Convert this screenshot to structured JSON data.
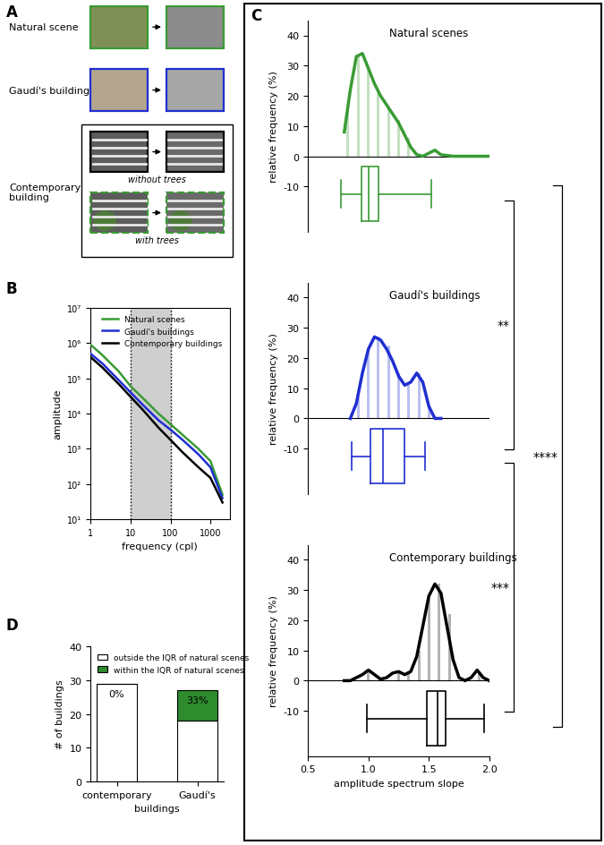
{
  "figure_a": {
    "panel": "A",
    "rows": [
      {
        "label": "Natural scene",
        "border_color": "#3a9b35"
      },
      {
        "label": "Gaudí's building",
        "border_color": "#1f2fd0"
      },
      {
        "label": "Contemporary building",
        "variants": [
          {
            "label": "without trees",
            "border_color": "#000000"
          },
          {
            "label": "with trees",
            "border_color": "#3a9b35"
          }
        ]
      }
    ]
  },
  "chart_data": [
    {
      "panel": "B",
      "type": "line",
      "log": true,
      "xlabel": "frequency (cpl)",
      "ylabel": "amplitude",
      "x": [
        1,
        2,
        5,
        10,
        20,
        50,
        100,
        200,
        500,
        1000,
        2000
      ],
      "series": [
        {
          "name": "Natural scenes",
          "color": "#3a9b35",
          "values": [
            900000,
            450000,
            160000,
            60000,
            28000,
            10000,
            5000,
            2500,
            1000,
            450,
            50
          ]
        },
        {
          "name": "Gaudí's buildings",
          "color": "#1f2fd0",
          "values": [
            500000,
            260000,
            90000,
            40000,
            18000,
            6500,
            3500,
            1800,
            700,
            300,
            40
          ]
        },
        {
          "name": "Contemporary buildings",
          "color": "#000000",
          "values": [
            400000,
            200000,
            70000,
            30000,
            13000,
            4000,
            1800,
            800,
            300,
            150,
            30
          ]
        }
      ],
      "shaded_range": [
        10,
        100
      ],
      "xlim": [
        1,
        3000
      ],
      "xticks": [
        1,
        10,
        100,
        1000
      ],
      "ylim": [
        10,
        10000000
      ],
      "yticks": [
        {
          "value": 10,
          "label": "10¹"
        },
        {
          "value": 100,
          "label": "10²"
        },
        {
          "value": 1000,
          "label": "10³"
        },
        {
          "value": 10000,
          "label": "10⁴"
        },
        {
          "value": 100000,
          "label": "10⁵"
        },
        {
          "value": 1000000,
          "label": "10⁶"
        },
        {
          "value": 10000000,
          "label": "10⁷"
        }
      ],
      "legend": "upper right"
    },
    {
      "panel": "C",
      "type": "density",
      "title": "Natural scenes",
      "color": "#3a9b35",
      "ylabel": "relative frequency (%)",
      "curve": {
        "x": [
          0.8,
          0.85,
          0.9,
          0.95,
          1.0,
          1.05,
          1.1,
          1.15,
          1.2,
          1.25,
          1.3,
          1.35,
          1.4,
          1.45,
          1.5,
          1.55,
          1.6,
          1.7,
          1.8,
          1.9,
          2.0
        ],
        "values": [
          8,
          22,
          33,
          34,
          29,
          24,
          20,
          17,
          14,
          11,
          7,
          3,
          0.5,
          0,
          1,
          2,
          0.5,
          0,
          0,
          0,
          0
        ]
      },
      "bars": {
        "x": [
          0.83,
          0.92,
          1.0,
          1.08,
          1.17,
          1.25,
          1.33
        ],
        "values": [
          15,
          33,
          29,
          21,
          16,
          12,
          6
        ]
      },
      "box": {
        "whislo": 0.77,
        "q1": 0.94,
        "med": 1.0,
        "q3": 1.08,
        "whishi": 1.52
      },
      "xlim": [
        0.5,
        2.0
      ],
      "ylim": [
        -25,
        45
      ],
      "yticks": [
        -10,
        0,
        10,
        20,
        30,
        40
      ]
    },
    {
      "type": "density",
      "title": "Gaudí's buildings",
      "color": "#1f2fd0",
      "ylabel": "relative frequency (%)",
      "curve": {
        "x": [
          0.85,
          0.9,
          0.95,
          1.0,
          1.05,
          1.1,
          1.15,
          1.2,
          1.25,
          1.3,
          1.35,
          1.4,
          1.45,
          1.5,
          1.55,
          1.6
        ],
        "values": [
          0,
          5,
          15,
          23,
          27,
          26,
          23,
          19,
          14,
          11,
          12,
          15,
          12,
          4,
          0,
          0
        ]
      },
      "bars": {
        "x": [
          0.92,
          1.0,
          1.08,
          1.17,
          1.25,
          1.33,
          1.42,
          1.5
        ],
        "values": [
          7,
          22,
          27,
          24,
          15,
          11,
          15,
          4
        ]
      },
      "box": {
        "whislo": 0.86,
        "q1": 1.02,
        "med": 1.12,
        "q3": 1.3,
        "whishi": 1.47
      },
      "xlim": [
        0.5,
        2.0
      ],
      "ylim": [
        -25,
        45
      ],
      "yticks": [
        -10,
        0,
        10,
        20,
        30,
        40
      ]
    },
    {
      "type": "density",
      "title": "Contemporary buildings",
      "color": "#000000",
      "ylabel": "relative frequency (%)",
      "xlabel": "amplitude spectrum slope",
      "curve": {
        "x": [
          0.8,
          0.85,
          0.9,
          0.95,
          1.0,
          1.05,
          1.1,
          1.15,
          1.2,
          1.25,
          1.3,
          1.35,
          1.4,
          1.45,
          1.5,
          1.55,
          1.6,
          1.65,
          1.7,
          1.75,
          1.8,
          1.85,
          1.9,
          1.95,
          2.0
        ],
        "values": [
          0,
          0,
          1,
          2,
          3.5,
          2,
          0.5,
          1,
          2.5,
          3,
          2,
          3,
          8,
          18,
          28,
          32,
          29,
          18,
          7,
          1,
          0,
          1,
          3.5,
          1,
          0
        ]
      },
      "bars": {
        "x": [
          1.0,
          1.25,
          1.33,
          1.42,
          1.5,
          1.58,
          1.67,
          1.92
        ],
        "values": [
          3,
          3,
          3,
          10,
          27,
          32,
          22,
          3
        ]
      },
      "box": {
        "whislo": 0.99,
        "q1": 1.48,
        "med": 1.57,
        "q3": 1.64,
        "whishi": 1.96
      },
      "xlim": [
        0.5,
        2.0
      ],
      "xticks": [
        0.5,
        {
          "value": 1.0,
          "label": "1.0"
        },
        1.5,
        {
          "value": 2.0,
          "label": "2.0"
        }
      ],
      "ylim": [
        -25,
        45
      ],
      "yticks": [
        -10,
        0,
        10,
        20,
        30,
        40
      ]
    },
    {
      "panel": "D",
      "type": "bar",
      "stacked": true,
      "categories": [
        "contemporary",
        "Gaudí's"
      ],
      "xlabel": "buildings",
      "ylabel": "# of buildings",
      "series": [
        {
          "name": "outside the IQR of natural scenes",
          "color": "#ffffff",
          "values": [
            29,
            18
          ]
        },
        {
          "name": "within the IQR of natural scenes",
          "color": "#2e8b2e",
          "values": [
            0,
            9
          ]
        }
      ],
      "percentages": {
        "values": [
          0,
          33
        ],
        "value_labels": [
          "0%",
          "33%"
        ]
      },
      "ylim": [
        0,
        40
      ],
      "yticks": [
        0,
        10,
        20,
        30,
        40
      ],
      "legend": "upper left"
    }
  ],
  "comparisons": [
    {
      "pair": [
        "Natural scenes",
        "Gaudí's buildings"
      ],
      "label": "**"
    },
    {
      "pair": [
        "Natural scenes",
        "Contemporary buildings"
      ],
      "label": "****"
    },
    {
      "pair": [
        "Gaudí's buildings",
        "Contemporary buildings"
      ],
      "label": "***"
    }
  ]
}
